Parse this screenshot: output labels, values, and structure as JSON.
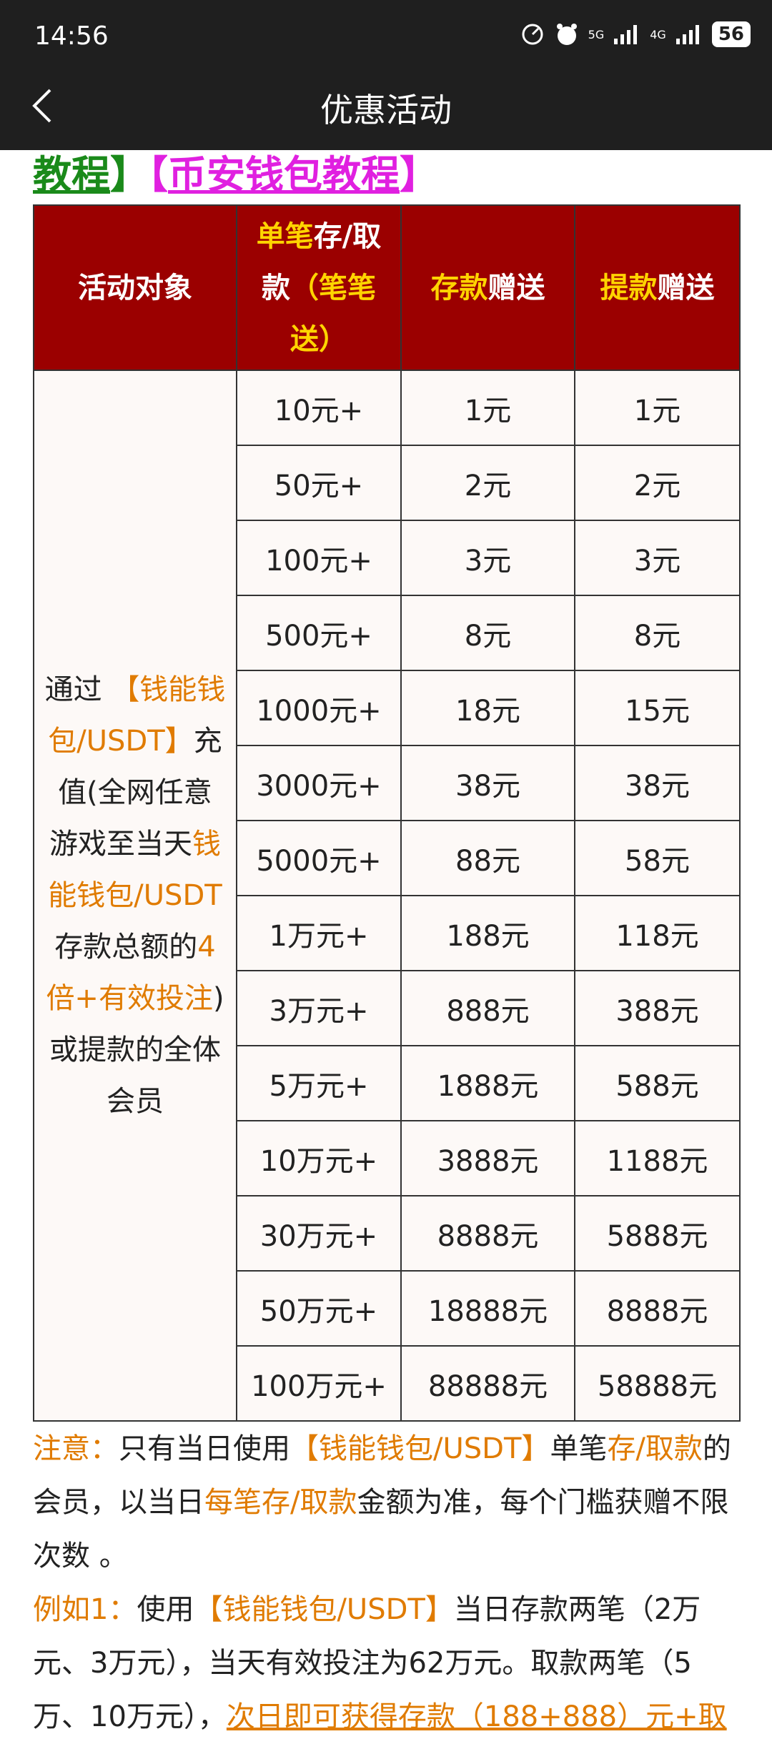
{
  "status_bar": {
    "time": "14:56",
    "net1": "5G",
    "net2": "4G",
    "battery": "56"
  },
  "header": {
    "title": "优惠活动"
  },
  "links": [
    {
      "text": "教程",
      "color": "#1a8a1a",
      "underline": true
    },
    {
      "text": "】",
      "color": "#1a8a1a"
    },
    {
      "text": "【",
      "color": "#e020e0"
    },
    {
      "text": "币安钱包教程",
      "color": "#e020e0",
      "underline": true
    },
    {
      "text": "】",
      "color": "#e020e0"
    }
  ],
  "table": {
    "header": [
      [
        {
          "text": "活动对象"
        }
      ],
      [
        {
          "text": "单笔",
          "color": "#ffd400"
        },
        {
          "text": "存/取款"
        },
        {
          "text": "（笔笔送）",
          "color": "#ffd400"
        }
      ],
      [
        {
          "text": "存款",
          "color": "#ffd400"
        },
        {
          "text": "赠送"
        }
      ],
      [
        {
          "text": "提款",
          "color": "#ffd400"
        },
        {
          "text": "赠送"
        }
      ]
    ],
    "target": [
      {
        "text": "通过 "
      },
      {
        "text": "【钱能钱包/USDT】",
        "color": "#e07b00"
      },
      {
        "text": "充值(全网任意游戏至当天"
      },
      {
        "text": "钱能钱包/USDT",
        "color": "#e07b00"
      },
      {
        "text": "存款总额的"
      },
      {
        "text": "4倍+有效投注",
        "color": "#e07b00"
      },
      {
        "text": ")或提款的全体会员"
      }
    ],
    "rows": [
      [
        "10元+",
        "1元",
        "1元"
      ],
      [
        "50元+",
        "2元",
        "2元"
      ],
      [
        "100元+",
        "3元",
        "3元"
      ],
      [
        "500元+",
        "8元",
        "8元"
      ],
      [
        "1000元+",
        "18元",
        "15元"
      ],
      [
        "3000元+",
        "38元",
        "38元"
      ],
      [
        "5000元+",
        "88元",
        "58元"
      ],
      [
        "1万元+",
        "188元",
        "118元"
      ],
      [
        "3万元+",
        "888元",
        "388元"
      ],
      [
        "5万元+",
        "1888元",
        "588元"
      ],
      [
        "10万元+",
        "3888元",
        "1188元"
      ],
      [
        "30万元+",
        "8888元",
        "5888元"
      ],
      [
        "50万元+",
        "18888元",
        "8888元"
      ],
      [
        "100万元+",
        "88888元",
        "58888元"
      ]
    ]
  },
  "notes": [
    [
      {
        "text": "注意：",
        "color": "#e07b00"
      },
      {
        "text": "只有当日使用"
      },
      {
        "text": "【钱能钱包/USDT】",
        "color": "#e07b00"
      },
      {
        "text": "单笔"
      },
      {
        "text": "存/取款",
        "color": "#e07b00"
      },
      {
        "text": "的会员，以当日"
      },
      {
        "text": "每笔存/取款",
        "color": "#e07b00"
      },
      {
        "text": "金额为准，每个门槛获赠不限次数 。"
      }
    ],
    [
      {
        "text": "例如1：",
        "color": "#e07b00"
      },
      {
        "text": "使用"
      },
      {
        "text": "【钱能钱包/USDT】",
        "color": "#e07b00"
      },
      {
        "text": "当日存款两笔（2万元、3万元），当天有效投注为62万元。取款两笔（5万、10万元），"
      },
      {
        "text": "次日即可获得存款（188+888）元+取",
        "color": "#e07b00",
        "underline": true
      }
    ]
  ]
}
